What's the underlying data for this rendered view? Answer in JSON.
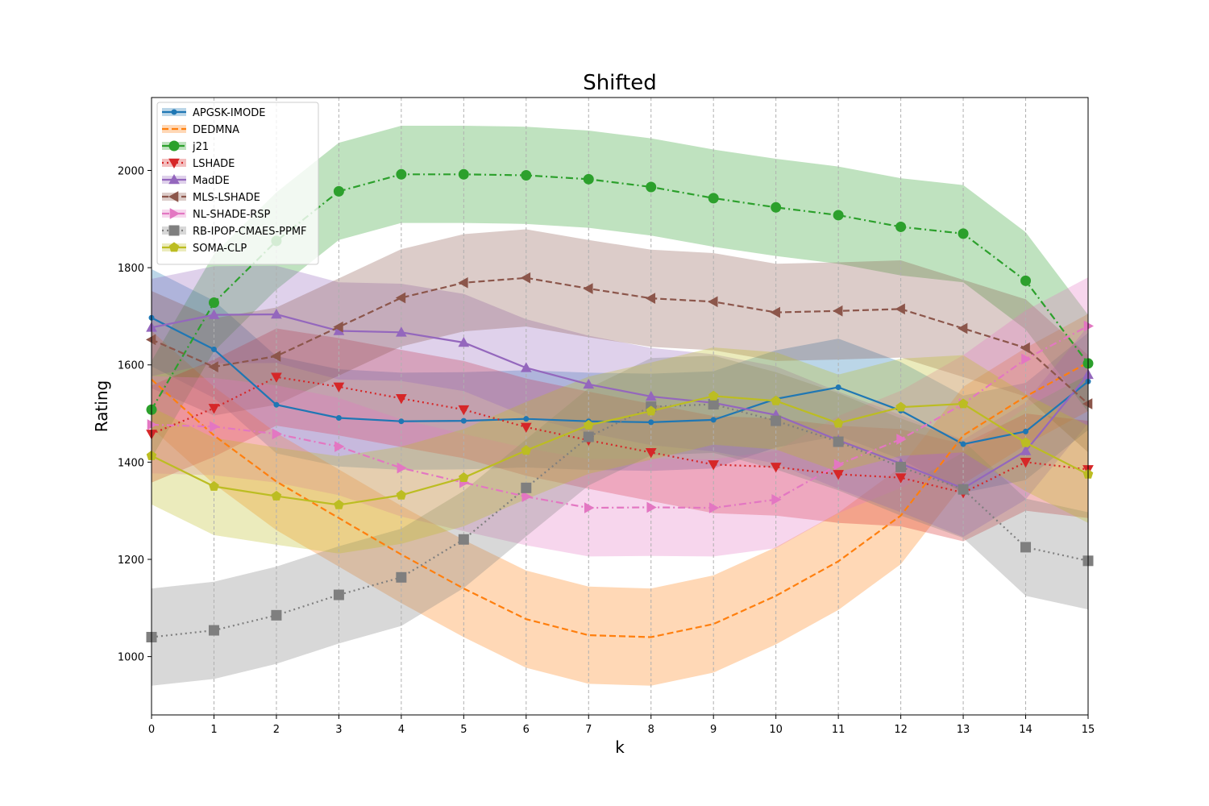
{
  "chart_data": {
    "type": "line",
    "title": "Shifted",
    "xlabel": "k",
    "ylabel": "Rating",
    "xlim": [
      0,
      15
    ],
    "ylim": [
      880,
      2150
    ],
    "x": [
      0,
      1,
      2,
      3,
      4,
      5,
      6,
      7,
      8,
      9,
      10,
      11,
      12,
      13,
      14,
      15
    ],
    "x_ticks": [
      0,
      1,
      2,
      3,
      4,
      5,
      6,
      7,
      8,
      9,
      10,
      11,
      12,
      13,
      14,
      15
    ],
    "y_ticks": [
      1000,
      1200,
      1400,
      1600,
      1800,
      2000
    ],
    "grid": "vertical dashed at each x tick",
    "legend_position": "upper-left",
    "band_half_width": 100,
    "series": [
      {
        "name": "APGSK-IMODE",
        "color": "#1f77b4",
        "linestyle": "solid",
        "marker": "circle-small",
        "values": [
          1697,
          1632,
          1518,
          1491,
          1484,
          1485,
          1489,
          1484,
          1482,
          1487,
          1530,
          1554,
          1506,
          1437,
          1463,
          1566
        ]
      },
      {
        "name": "DEDMNA",
        "color": "#ff7f0e",
        "linestyle": "dashed",
        "marker": "none",
        "values": [
          1570,
          1455,
          1360,
          1285,
          1210,
          1140,
          1077,
          1044,
          1040,
          1067,
          1125,
          1196,
          1290,
          1455,
          1535,
          1605
        ]
      },
      {
        "name": "j21",
        "color": "#2ca02c",
        "linestyle": "dashdot",
        "marker": "circle",
        "values": [
          1508,
          1728,
          1855,
          1957,
          1992,
          1992,
          1990,
          1982,
          1966,
          1943,
          1924,
          1908,
          1884,
          1870,
          1773,
          1603
        ]
      },
      {
        "name": "LSHADE",
        "color": "#d62728",
        "linestyle": "dotted",
        "marker": "triangle-down",
        "values": [
          1458,
          1511,
          1575,
          1555,
          1531,
          1508,
          1472,
          1445,
          1420,
          1395,
          1390,
          1375,
          1368,
          1337,
          1400,
          1385
        ]
      },
      {
        "name": "MadDE",
        "color": "#9467bd",
        "linestyle": "solid",
        "marker": "triangle-up",
        "values": [
          1677,
          1703,
          1704,
          1670,
          1667,
          1646,
          1594,
          1560,
          1535,
          1522,
          1497,
          1445,
          1397,
          1346,
          1423,
          1580
        ]
      },
      {
        "name": "MLS-LSHADE",
        "color": "#8c564b",
        "linestyle": "dashed",
        "marker": "triangle-left",
        "values": [
          1652,
          1596,
          1618,
          1678,
          1738,
          1769,
          1779,
          1757,
          1737,
          1730,
          1708,
          1711,
          1715,
          1675,
          1635,
          1520
        ]
      },
      {
        "name": "NL-SHADE-RSP",
        "color": "#e377c2",
        "linestyle": "dashdot",
        "marker": "triangle-right",
        "values": [
          1477,
          1473,
          1458,
          1432,
          1388,
          1358,
          1329,
          1306,
          1307,
          1306,
          1323,
          1395,
          1447,
          1520,
          1612,
          1680
        ]
      },
      {
        "name": "RB-IPOP-CMAES-PPMF",
        "color": "#7f7f7f",
        "linestyle": "dotted",
        "marker": "square",
        "values": [
          1040,
          1054,
          1085,
          1127,
          1163,
          1241,
          1347,
          1452,
          1514,
          1519,
          1485,
          1442,
          1390,
          1344,
          1225,
          1197
        ]
      },
      {
        "name": "SOMA-CLP",
        "color": "#bcbd22",
        "linestyle": "solid",
        "marker": "pentagon",
        "values": [
          1413,
          1350,
          1330,
          1312,
          1332,
          1368,
          1424,
          1476,
          1505,
          1536,
          1526,
          1480,
          1513,
          1520,
          1440,
          1375
        ]
      }
    ]
  }
}
